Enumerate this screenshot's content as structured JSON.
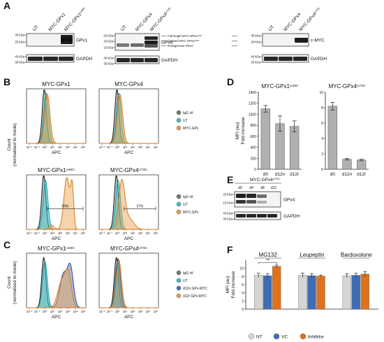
{
  "figure": {
    "panel_letters": [
      "A",
      "B",
      "C",
      "D",
      "E",
      "F"
    ],
    "panel_a": {
      "blots": [
        {
          "lanes": [
            "UT",
            "MYC-GPx1",
            "MYC-GPx1U49C"
          ],
          "rows": [
            {
              "protein": "GPx1",
              "markers": [
                "35 kDa",
                "25 kDa"
              ]
            },
            {
              "protein": "GAPDH",
              "markers": [
                "40 kDa",
                "35 kDa"
              ]
            }
          ]
        },
        {
          "lanes": [
            "UT",
            "MYC-GPx4",
            "MYC-GPx4U73C"
          ],
          "rows": [
            {
              "protein": "GPx4",
              "markers": [
                "25 kDa",
                "20 kDa",
                "15 kDa"
              ]
            },
            {
              "protein": "GAPDH",
              "markers": [
                "40 kDa",
                "35 kDa"
              ]
            }
          ]
        },
        {
          "lanes": [
            "UT",
            "MYC-GPx4",
            "MYC-GPx4U73C"
          ],
          "rows": [
            {
              "protein": "c-MYC",
              "markers": [
                "35 kDa",
                "25 kDa"
              ]
            },
            {
              "protein": "GAPDH",
              "markers": [
                "40 kDa",
                "35 kDa"
              ]
            }
          ]
        }
      ],
      "band_annotations": [
        "Full length MYC-GPx4U73C",
        "Cleaved MYC-GPx4U73C",
        "Endogenous GPx4"
      ]
    },
    "histograms": {
      "xlabel": "APC",
      "ylabel_line1": "Count",
      "ylabel_line2": "(normalised to mode)",
      "ticks": [
        "10⁻²",
        "10⁻¹",
        "10⁰",
        "10¹",
        "10²",
        "10³",
        "10⁴",
        "10⁵"
      ],
      "b_top_titles": [
        "MYC-GPx1",
        "MYC-GPx4"
      ],
      "b_bottom_titles": [
        "MYC-GPx1U49C",
        "MYC-GPx4U73C"
      ],
      "b_gates": [
        "99%",
        "37%"
      ],
      "b_legend": [
        {
          "label": "IgG ctl",
          "color": "#777777"
        },
        {
          "label": "UT",
          "color": "#39c2c9"
        },
        {
          "label": "MYC-GPx",
          "color": "#e8a04a"
        }
      ],
      "c_titles": [
        "MYC-GPx1U49C",
        "MYC-GPx4U73C"
      ],
      "c_legend": [
        {
          "label": "IgG ctl",
          "color": "#777777"
        },
        {
          "label": "UT",
          "color": "#39c2c9"
        },
        {
          "label": "d12n GPx-MYC",
          "color": "#4a6fb5"
        },
        {
          "label": "d12r GPx-MYC",
          "color": "#e8a04a"
        }
      ]
    },
    "panel_e": {
      "title": "MYC-GPx4U73C",
      "lanes": [
        "d0",
        "d4",
        "d8",
        "d12"
      ],
      "rows": [
        {
          "protein": "GPx4",
          "markers": [
            "25 kDa",
            "15 kDa"
          ]
        },
        {
          "protein": "GAPDH",
          "markers": [
            "40 kDa",
            "35 kDa"
          ]
        }
      ]
    }
  },
  "chart_data": [
    {
      "type": "bar",
      "panel": "D",
      "title": "MYC-GPx1U49C",
      "ylabel": "MFI (au) Fold increase",
      "categories": [
        "d0",
        "d12n",
        "d12r"
      ],
      "values": [
        1100,
        830,
        780
      ],
      "errors": [
        60,
        140,
        100
      ],
      "ylim": [
        0,
        1400
      ],
      "yticks": [
        0,
        200,
        400,
        600,
        800,
        1000,
        1200,
        1400
      ],
      "color": "#b0b0b0"
    },
    {
      "type": "bar",
      "panel": "D",
      "title": "MYC-GPx4U73C",
      "categories": [
        "d0",
        "d12n",
        "d12r"
      ],
      "values": [
        8.2,
        1.3,
        1.2
      ],
      "errors": [
        0.5,
        0.1,
        0.1
      ],
      "ylim": [
        0,
        10
      ],
      "yticks": [
        0,
        2,
        4,
        6,
        8,
        10
      ],
      "color": "#b0b0b0"
    },
    {
      "type": "bar",
      "panel": "F",
      "ylabel": "MFI (au) Fold increase",
      "groups": [
        "MG132",
        "Leupeptin",
        "Bardoxolone"
      ],
      "series": [
        {
          "name": "NT",
          "color": "#d5d5d5",
          "values": [
            8.3,
            8.3,
            8.2
          ],
          "errors": [
            0.5,
            0.5,
            0.5
          ]
        },
        {
          "name": "VC",
          "color": "#3f6db3",
          "values": [
            8.2,
            8.2,
            8.3
          ],
          "errors": [
            0.5,
            0.5,
            0.5
          ]
        },
        {
          "name": "Inhibitor",
          "color": "#e0711d",
          "values": [
            10.5,
            8.1,
            8.6
          ],
          "errors": [
            0.3,
            0.2,
            0.6
          ]
        }
      ],
      "ylim": [
        0,
        12
      ],
      "yticks": [
        0,
        2,
        4,
        6,
        8,
        10
      ],
      "annotation": "**"
    }
  ]
}
